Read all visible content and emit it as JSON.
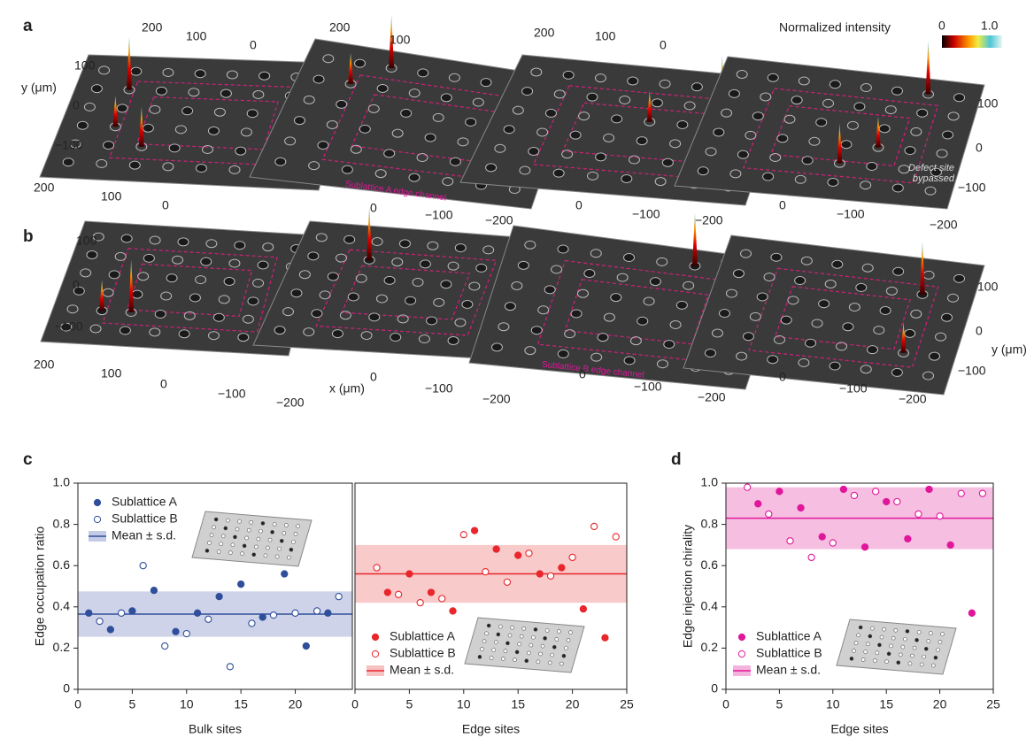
{
  "panels": [
    {
      "label": "a",
      "axis_label": "y (μm)",
      "ticks": [
        "200",
        "100",
        "0",
        "200",
        "100",
        "200",
        "100",
        "0",
        "100",
        "0",
        "−100",
        "200",
        "100",
        "0",
        "0",
        "−100",
        "−200",
        "0",
        "−100",
        "−200",
        "0",
        "−100",
        "−200",
        "100",
        "0",
        "−100"
      ],
      "annotation": "Sublattice A edge channel",
      "defect_note": "Defect site bypassed"
    },
    {
      "label": "b",
      "axis_label": "x (μm)",
      "axis_label_2": "y (μm)",
      "ticks": [
        "100",
        "0",
        "−100",
        "200",
        "100",
        "0",
        "−100",
        "−200",
        "0",
        "−100",
        "−200",
        "0",
        "−100",
        "−200",
        "0",
        "−100",
        "−200",
        "100",
        "0",
        "−100"
      ],
      "annotation": "Sublattice B edge channel"
    }
  ],
  "colorbar": {
    "title": "Normalized intensity",
    "min": "0",
    "max": "1.0"
  },
  "chart_data": [
    {
      "type": "scatter",
      "panel": "c",
      "xlabel": "Bulk sites",
      "ylabel": "Edge occupation ratio",
      "xlim": [
        0,
        25
      ],
      "xticks": [
        0,
        5,
        10,
        15,
        20
      ],
      "ylim": [
        0,
        1
      ],
      "yticks": [
        0,
        0.2,
        0.4,
        0.6,
        0.8,
        {
          "value": 1,
          "label": "1.0"
        }
      ],
      "series": [
        {
          "name": "Sublattice A",
          "color": "#2f4f9a",
          "filled": true,
          "x": [
            1,
            3,
            5,
            7,
            9,
            11,
            13,
            15,
            17,
            19,
            21,
            23
          ],
          "values": [
            0.37,
            0.29,
            0.38,
            0.48,
            0.28,
            0.37,
            0.45,
            0.51,
            0.35,
            0.56,
            0.21,
            0.37
          ]
        },
        {
          "name": "Sublattice B",
          "color": "#2f4f9a",
          "filled": false,
          "x": [
            2,
            4,
            6,
            8,
            10,
            12,
            14,
            16,
            18,
            20,
            22,
            24
          ],
          "values": [
            0.33,
            0.37,
            0.6,
            0.21,
            0.27,
            0.34,
            0.11,
            0.32,
            0.36,
            0.37,
            0.38,
            0.45
          ]
        }
      ],
      "band": {
        "name": "Mean ± s.d.",
        "color": "#2f4f9a",
        "fill": "#c5cbe6",
        "mean": 0.365,
        "sd": 0.11
      }
    },
    {
      "type": "scatter",
      "xlabel": "Edge sites",
      "xlim": [
        0,
        25
      ],
      "xticks": [
        0,
        5,
        10,
        15,
        20,
        25
      ],
      "ylim": [
        0,
        1
      ],
      "series": [
        {
          "name": "Sublattice A",
          "color": "#e8262b",
          "filled": true,
          "x": [
            3,
            5,
            7,
            9,
            11,
            13,
            15,
            17,
            19,
            21,
            23
          ],
          "values": [
            0.47,
            0.56,
            0.47,
            0.38,
            0.77,
            0.68,
            0.65,
            0.56,
            0.59,
            0.39,
            0.25
          ]
        },
        {
          "name": "Sublattice B",
          "color": "#e8262b",
          "filled": false,
          "x": [
            2,
            4,
            6,
            8,
            10,
            12,
            14,
            16,
            18,
            20,
            22,
            24
          ],
          "values": [
            0.59,
            0.46,
            0.42,
            0.44,
            0.75,
            0.57,
            0.52,
            0.66,
            0.55,
            0.64,
            0.79,
            0.74
          ]
        }
      ],
      "band": {
        "name": "Mean ± s.d.",
        "color": "#e8262b",
        "fill": "#f7c1c1",
        "mean": 0.56,
        "sd": 0.14
      }
    },
    {
      "type": "scatter",
      "panel": "d",
      "xlabel": "Edge sites",
      "ylabel": "Edge injection chirality",
      "xlim": [
        0,
        25
      ],
      "xticks": [
        0,
        5,
        10,
        15,
        20,
        25
      ],
      "ylim": [
        0,
        1
      ],
      "yticks": [
        0,
        0.2,
        0.4,
        0.6,
        0.8,
        {
          "value": 1,
          "label": "1.0"
        }
      ],
      "series": [
        {
          "name": "Sublattice A",
          "color": "#e0179a",
          "filled": true,
          "x": [
            3,
            5,
            7,
            9,
            11,
            13,
            15,
            17,
            19,
            21,
            23
          ],
          "values": [
            0.9,
            0.96,
            0.88,
            0.74,
            0.97,
            0.69,
            0.91,
            0.73,
            0.97,
            0.7,
            0.37
          ]
        },
        {
          "name": "Sublattice B",
          "color": "#e0179a",
          "filled": false,
          "x": [
            2,
            4,
            6,
            8,
            10,
            12,
            14,
            16,
            18,
            20,
            22,
            24
          ],
          "values": [
            0.98,
            0.85,
            0.72,
            0.64,
            0.71,
            0.94,
            0.96,
            0.91,
            0.85,
            0.84,
            0.95,
            0.95
          ]
        }
      ],
      "band": {
        "name": "Mean ± s.d.",
        "color": "#e0179a",
        "fill": "#f4b3dc",
        "mean": 0.83,
        "sd": 0.15
      }
    }
  ]
}
